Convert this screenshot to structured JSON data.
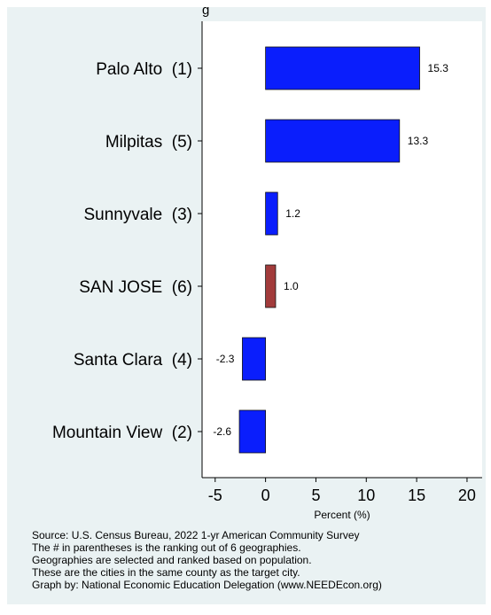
{
  "chart_data": {
    "type": "bar",
    "orientation": "horizontal",
    "title": "",
    "xlabel": "Percent (%)",
    "ylabel": "",
    "xlim": [
      -6.3,
      21.5
    ],
    "xticks": [
      -5,
      0,
      5,
      10,
      15,
      20
    ],
    "grid": false,
    "categories": [
      "Palo Alto  (1)",
      "Milpitas  (5)",
      "Sunnyvale  (3)",
      "SAN JOSE  (6)",
      "Santa Clara  (4)",
      "Mountain View  (2)"
    ],
    "values": [
      15.3,
      13.3,
      1.2,
      1.0,
      -2.3,
      -2.6
    ],
    "value_labels": [
      "15.3",
      "13.3",
      "1.2",
      "1.0",
      "-2.3",
      "-2.6"
    ],
    "colors": [
      "#0a1efc",
      "#0a1efc",
      "#0a1efc",
      "#a23b3b",
      "#0a1efc",
      "#0a1efc"
    ],
    "top_partial_text": "g"
  },
  "source_notes": [
    "Source: U.S. Census Bureau, 2022 1-yr American Community Survey",
    "The # in parentheses is the ranking out of 6 geographies.",
    "Geographies are selected and ranked based on population.",
    "These are the cities in the same county as the target city.",
    "Graph by: National Economic Education Delegation (www.NEEDEcon.org)"
  ]
}
